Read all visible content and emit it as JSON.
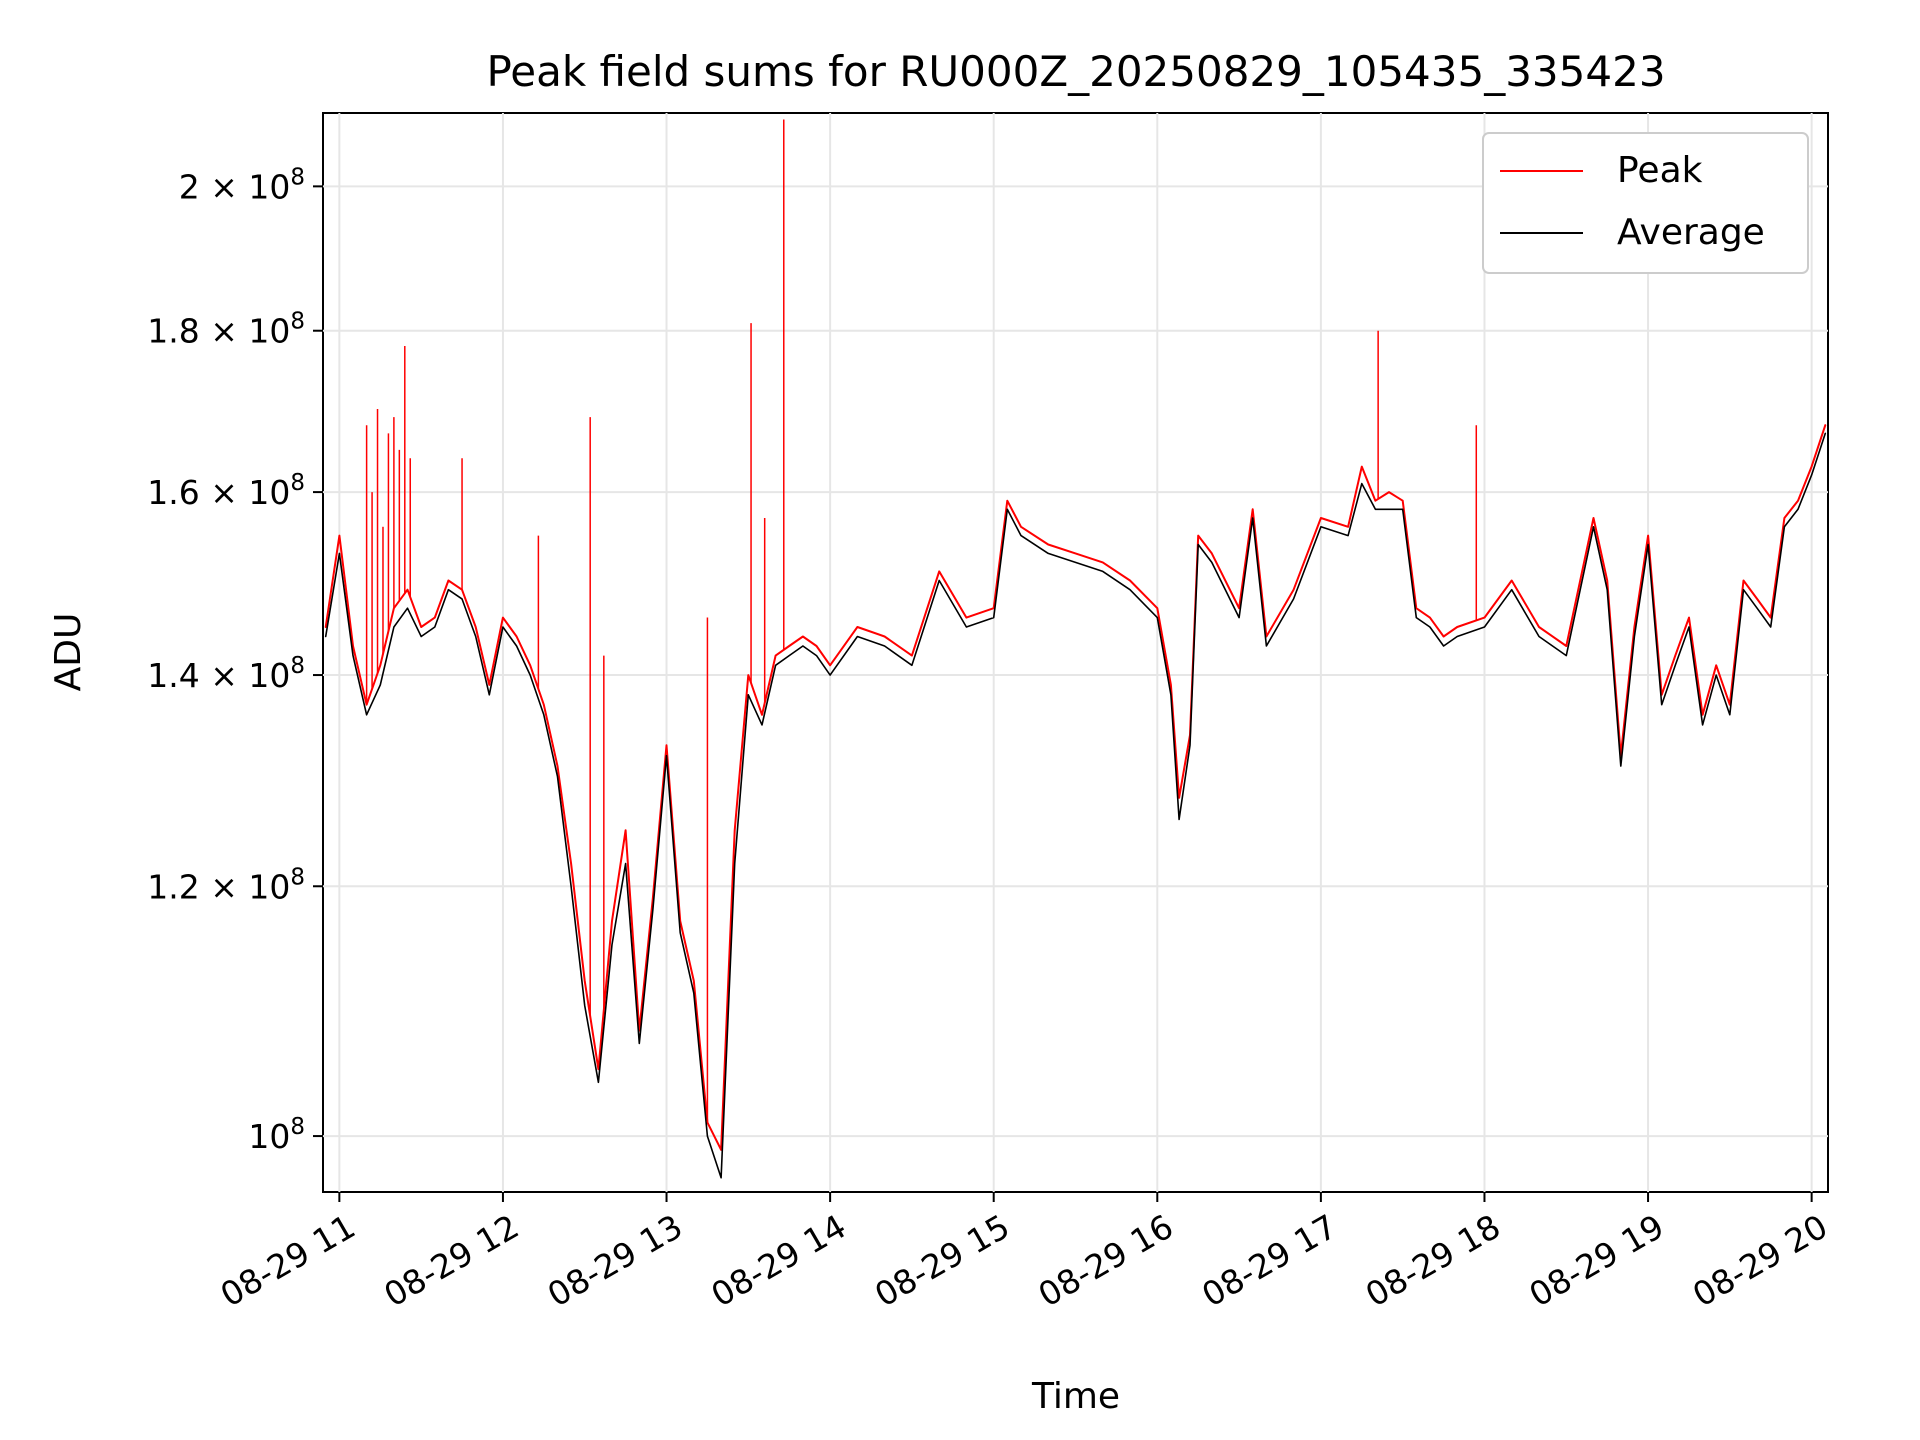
{
  "chart_data": {
    "type": "line",
    "title": "Peak field sums for RU000Z_20250829_105435_335423",
    "xlabel": "Time",
    "ylabel": "ADU",
    "x_start": "2025-08-29 10:54",
    "x_end": "2025-08-29 20:06",
    "xlim": [
      "2025-08-29 10:54",
      "2025-08-29 20:06"
    ],
    "x_ticks": [
      {
        "t": "2025-08-29 11:00",
        "label": "08-29 11"
      },
      {
        "t": "2025-08-29 12:00",
        "label": "08-29 12"
      },
      {
        "t": "2025-08-29 13:00",
        "label": "08-29 13"
      },
      {
        "t": "2025-08-29 14:00",
        "label": "08-29 14"
      },
      {
        "t": "2025-08-29 15:00",
        "label": "08-29 15"
      },
      {
        "t": "2025-08-29 16:00",
        "label": "08-29 16"
      },
      {
        "t": "2025-08-29 17:00",
        "label": "08-29 17"
      },
      {
        "t": "2025-08-29 18:00",
        "label": "08-29 18"
      },
      {
        "t": "2025-08-29 19:00",
        "label": "08-29 19"
      },
      {
        "t": "2025-08-29 20:00",
        "label": "08-29 20"
      }
    ],
    "y_scale": "log",
    "ylim": [
      96000000,
      211000000
    ],
    "y_ticks": [
      {
        "value": 100000000,
        "mantissa": "",
        "exponent": "8",
        "base": "10"
      },
      {
        "value": 120000000,
        "mantissa": "1.2",
        "exponent": "8",
        "base": "10"
      },
      {
        "value": 140000000,
        "mantissa": "1.4",
        "exponent": "8",
        "base": "10"
      },
      {
        "value": 160000000,
        "mantissa": "1.6",
        "exponent": "8",
        "base": "10"
      },
      {
        "value": 180000000,
        "mantissa": "1.8",
        "exponent": "8",
        "base": "10"
      },
      {
        "value": 200000000,
        "mantissa": "2",
        "exponent": "8",
        "base": "10"
      }
    ],
    "grid": true,
    "legend_position": "top-right",
    "series": [
      {
        "name": "Peak",
        "color": "#ff0000",
        "x": [
          "2025-08-29 10:55",
          "2025-08-29 11:00",
          "2025-08-29 11:05",
          "2025-08-29 11:10",
          "2025-08-29 11:15",
          "2025-08-29 11:20",
          "2025-08-29 11:25",
          "2025-08-29 11:30",
          "2025-08-29 11:35",
          "2025-08-29 11:40",
          "2025-08-29 11:45",
          "2025-08-29 11:50",
          "2025-08-29 11:55",
          "2025-08-29 12:00",
          "2025-08-29 12:05",
          "2025-08-29 12:10",
          "2025-08-29 12:15",
          "2025-08-29 12:20",
          "2025-08-29 12:25",
          "2025-08-29 12:30",
          "2025-08-29 12:35",
          "2025-08-29 12:40",
          "2025-08-29 12:45",
          "2025-08-29 12:50",
          "2025-08-29 12:55",
          "2025-08-29 13:00",
          "2025-08-29 13:05",
          "2025-08-29 13:10",
          "2025-08-29 13:15",
          "2025-08-29 13:20",
          "2025-08-29 13:25",
          "2025-08-29 13:30",
          "2025-08-29 13:35",
          "2025-08-29 13:40",
          "2025-08-29 13:45",
          "2025-08-29 13:50",
          "2025-08-29 13:55",
          "2025-08-29 14:00",
          "2025-08-29 14:10",
          "2025-08-29 14:20",
          "2025-08-29 14:30",
          "2025-08-29 14:40",
          "2025-08-29 14:50",
          "2025-08-29 15:00",
          "2025-08-29 15:05",
          "2025-08-29 15:10",
          "2025-08-29 15:20",
          "2025-08-29 15:30",
          "2025-08-29 15:40",
          "2025-08-29 15:50",
          "2025-08-29 16:00",
          "2025-08-29 16:05",
          "2025-08-29 16:08",
          "2025-08-29 16:12",
          "2025-08-29 16:15",
          "2025-08-29 16:20",
          "2025-08-29 16:30",
          "2025-08-29 16:35",
          "2025-08-29 16:40",
          "2025-08-29 16:50",
          "2025-08-29 17:00",
          "2025-08-29 17:10",
          "2025-08-29 17:15",
          "2025-08-29 17:20",
          "2025-08-29 17:25",
          "2025-08-29 17:30",
          "2025-08-29 17:35",
          "2025-08-29 17:40",
          "2025-08-29 17:45",
          "2025-08-29 17:50",
          "2025-08-29 18:00",
          "2025-08-29 18:10",
          "2025-08-29 18:20",
          "2025-08-29 18:30",
          "2025-08-29 18:40",
          "2025-08-29 18:45",
          "2025-08-29 18:50",
          "2025-08-29 18:55",
          "2025-08-29 19:00",
          "2025-08-29 19:05",
          "2025-08-29 19:10",
          "2025-08-29 19:15",
          "2025-08-29 19:20",
          "2025-08-29 19:25",
          "2025-08-29 19:30",
          "2025-08-29 19:35",
          "2025-08-29 19:40",
          "2025-08-29 19:45",
          "2025-08-29 19:50",
          "2025-08-29 19:55",
          "2025-08-29 20:00",
          "2025-08-29 20:05"
        ],
        "values": [
          145000000,
          155000000,
          143000000,
          137000000,
          141000000,
          147000000,
          149000000,
          145000000,
          146000000,
          150000000,
          149000000,
          145000000,
          139000000,
          146000000,
          144000000,
          141000000,
          137000000,
          131000000,
          122000000,
          112000000,
          105000000,
          117000000,
          125000000,
          108000000,
          119000000,
          133000000,
          117000000,
          112000000,
          101000000,
          99000000,
          125000000,
          140000000,
          136000000,
          142000000,
          143000000,
          144000000,
          143000000,
          141000000,
          145000000,
          144000000,
          142000000,
          151000000,
          146000000,
          147000000,
          159000000,
          156000000,
          154000000,
          153000000,
          152000000,
          150000000,
          147000000,
          139000000,
          128000000,
          134000000,
          155000000,
          153000000,
          147000000,
          158000000,
          144000000,
          149000000,
          157000000,
          156000000,
          163000000,
          159000000,
          160000000,
          159000000,
          147000000,
          146000000,
          144000000,
          145000000,
          146000000,
          150000000,
          145000000,
          143000000,
          157000000,
          150000000,
          132000000,
          145000000,
          155000000,
          138000000,
          142000000,
          146000000,
          136000000,
          141000000,
          137000000,
          150000000,
          148000000,
          146000000,
          157000000,
          159000000,
          163000000,
          168000000
        ]
      },
      {
        "name": "Average",
        "color": "#000000",
        "x": [
          "2025-08-29 10:55",
          "2025-08-29 11:00",
          "2025-08-29 11:05",
          "2025-08-29 11:10",
          "2025-08-29 11:15",
          "2025-08-29 11:20",
          "2025-08-29 11:25",
          "2025-08-29 11:30",
          "2025-08-29 11:35",
          "2025-08-29 11:40",
          "2025-08-29 11:45",
          "2025-08-29 11:50",
          "2025-08-29 11:55",
          "2025-08-29 12:00",
          "2025-08-29 12:05",
          "2025-08-29 12:10",
          "2025-08-29 12:15",
          "2025-08-29 12:20",
          "2025-08-29 12:25",
          "2025-08-29 12:30",
          "2025-08-29 12:35",
          "2025-08-29 12:40",
          "2025-08-29 12:45",
          "2025-08-29 12:50",
          "2025-08-29 12:55",
          "2025-08-29 13:00",
          "2025-08-29 13:05",
          "2025-08-29 13:10",
          "2025-08-29 13:15",
          "2025-08-29 13:20",
          "2025-08-29 13:25",
          "2025-08-29 13:30",
          "2025-08-29 13:35",
          "2025-08-29 13:40",
          "2025-08-29 13:45",
          "2025-08-29 13:50",
          "2025-08-29 13:55",
          "2025-08-29 14:00",
          "2025-08-29 14:10",
          "2025-08-29 14:20",
          "2025-08-29 14:30",
          "2025-08-29 14:40",
          "2025-08-29 14:50",
          "2025-08-29 15:00",
          "2025-08-29 15:05",
          "2025-08-29 15:10",
          "2025-08-29 15:20",
          "2025-08-29 15:30",
          "2025-08-29 15:40",
          "2025-08-29 15:50",
          "2025-08-29 16:00",
          "2025-08-29 16:05",
          "2025-08-29 16:08",
          "2025-08-29 16:12",
          "2025-08-29 16:15",
          "2025-08-29 16:20",
          "2025-08-29 16:30",
          "2025-08-29 16:35",
          "2025-08-29 16:40",
          "2025-08-29 16:50",
          "2025-08-29 17:00",
          "2025-08-29 17:10",
          "2025-08-29 17:15",
          "2025-08-29 17:20",
          "2025-08-29 17:25",
          "2025-08-29 17:30",
          "2025-08-29 17:35",
          "2025-08-29 17:40",
          "2025-08-29 17:45",
          "2025-08-29 17:50",
          "2025-08-29 18:00",
          "2025-08-29 18:10",
          "2025-08-29 18:20",
          "2025-08-29 18:30",
          "2025-08-29 18:40",
          "2025-08-29 18:45",
          "2025-08-29 18:50",
          "2025-08-29 18:55",
          "2025-08-29 19:00",
          "2025-08-29 19:05",
          "2025-08-29 19:10",
          "2025-08-29 19:15",
          "2025-08-29 19:20",
          "2025-08-29 19:25",
          "2025-08-29 19:30",
          "2025-08-29 19:35",
          "2025-08-29 19:40",
          "2025-08-29 19:45",
          "2025-08-29 19:50",
          "2025-08-29 19:55",
          "2025-08-29 20:00",
          "2025-08-29 20:05"
        ],
        "values": [
          144000000,
          153000000,
          142000000,
          136000000,
          139000000,
          145000000,
          147000000,
          144000000,
          145000000,
          149000000,
          148000000,
          144000000,
          138000000,
          145000000,
          143000000,
          140000000,
          136000000,
          130000000,
          120000000,
          110000000,
          104000000,
          115000000,
          122000000,
          107000000,
          118000000,
          132000000,
          116000000,
          111000000,
          100000000,
          97000000,
          122000000,
          138000000,
          135000000,
          141000000,
          142000000,
          143000000,
          142000000,
          140000000,
          144000000,
          143000000,
          141000000,
          150000000,
          145000000,
          146000000,
          158000000,
          155000000,
          153000000,
          152000000,
          151000000,
          149000000,
          146000000,
          138000000,
          126000000,
          133000000,
          154000000,
          152000000,
          146000000,
          157000000,
          143000000,
          148000000,
          156000000,
          155000000,
          161000000,
          158000000,
          158000000,
          158000000,
          146000000,
          145000000,
          143000000,
          144000000,
          145000000,
          149000000,
          144000000,
          142000000,
          156000000,
          149000000,
          131000000,
          144000000,
          154000000,
          137000000,
          141000000,
          145000000,
          135000000,
          140000000,
          136000000,
          149000000,
          147000000,
          145000000,
          156000000,
          158000000,
          162000000,
          167000000
        ]
      }
    ],
    "spikes": {
      "name": "Peak",
      "color": "#ff0000",
      "points": [
        {
          "t": "2025-08-29 11:10",
          "value": 168000000
        },
        {
          "t": "2025-08-29 11:12",
          "value": 160000000
        },
        {
          "t": "2025-08-29 11:14",
          "value": 170000000
        },
        {
          "t": "2025-08-29 11:16",
          "value": 156000000
        },
        {
          "t": "2025-08-29 11:18",
          "value": 167000000
        },
        {
          "t": "2025-08-29 11:20",
          "value": 169000000
        },
        {
          "t": "2025-08-29 11:22",
          "value": 165000000
        },
        {
          "t": "2025-08-29 11:24",
          "value": 178000000
        },
        {
          "t": "2025-08-29 11:26",
          "value": 164000000
        },
        {
          "t": "2025-08-29 11:45",
          "value": 164000000
        },
        {
          "t": "2025-08-29 12:13",
          "value": 155000000
        },
        {
          "t": "2025-08-29 12:32",
          "value": 169000000
        },
        {
          "t": "2025-08-29 12:37",
          "value": 142000000
        },
        {
          "t": "2025-08-29 13:15",
          "value": 146000000
        },
        {
          "t": "2025-08-29 13:31",
          "value": 181000000
        },
        {
          "t": "2025-08-29 13:36",
          "value": 157000000
        },
        {
          "t": "2025-08-29 13:43",
          "value": 210000000
        },
        {
          "t": "2025-08-29 17:21",
          "value": 180000000
        },
        {
          "t": "2025-08-29 17:57",
          "value": 168000000
        }
      ]
    }
  }
}
